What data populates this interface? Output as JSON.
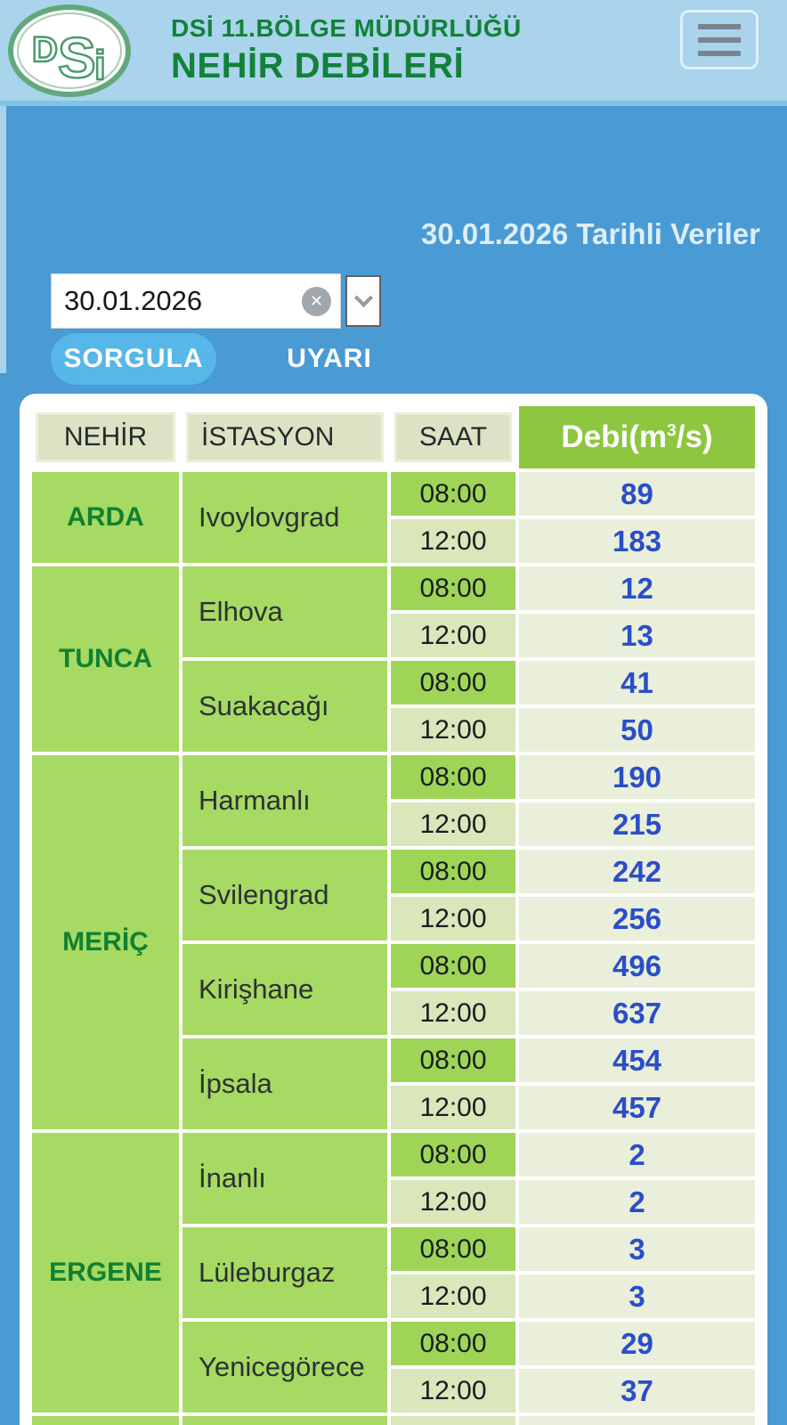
{
  "header": {
    "logo_letters": [
      "D",
      "S",
      "i"
    ],
    "title_line1": "DSİ 11.BÖLGE MÜDÜRLÜĞÜ",
    "title_line2": "NEHİR DEBİLERİ"
  },
  "toolbar": {
    "date_caption": "30.01.2026 Tarihli Veriler",
    "date_value": "30.01.2026",
    "clear_glyph": "✕",
    "sorgula_label": "SORGULA",
    "uyari_label": "UYARI"
  },
  "table": {
    "columns": [
      "NEHİR",
      "İSTASYON",
      "SAAT"
    ],
    "debi_header": {
      "base": "Debi(m",
      "sup": "3",
      "rest": "/s)"
    },
    "rivers": [
      {
        "name": "ARDA",
        "stations": [
          {
            "name": "Ivoylovgrad",
            "readings": [
              {
                "time": "08:00",
                "value": "89"
              },
              {
                "time": "12:00",
                "value": "183"
              }
            ]
          }
        ]
      },
      {
        "name": "TUNCA",
        "stations": [
          {
            "name": "Elhova",
            "readings": [
              {
                "time": "08:00",
                "value": "12"
              },
              {
                "time": "12:00",
                "value": "13"
              }
            ]
          },
          {
            "name": "Suakacağı",
            "readings": [
              {
                "time": "08:00",
                "value": "41"
              },
              {
                "time": "12:00",
                "value": "50"
              }
            ]
          }
        ]
      },
      {
        "name": "MERİÇ",
        "stations": [
          {
            "name": "Harmanlı",
            "readings": [
              {
                "time": "08:00",
                "value": "190"
              },
              {
                "time": "12:00",
                "value": "215"
              }
            ]
          },
          {
            "name": "Svilengrad",
            "readings": [
              {
                "time": "08:00",
                "value": "242"
              },
              {
                "time": "12:00",
                "value": "256"
              }
            ]
          },
          {
            "name": "Kirişhane",
            "readings": [
              {
                "time": "08:00",
                "value": "496"
              },
              {
                "time": "12:00",
                "value": "637"
              }
            ]
          },
          {
            "name": "İpsala",
            "readings": [
              {
                "time": "08:00",
                "value": "454"
              },
              {
                "time": "12:00",
                "value": "457"
              }
            ]
          }
        ]
      },
      {
        "name": "ERGENE",
        "stations": [
          {
            "name": "İnanlı",
            "readings": [
              {
                "time": "08:00",
                "value": "2"
              },
              {
                "time": "12:00",
                "value": "2"
              }
            ]
          },
          {
            "name": "Lüleburgaz",
            "readings": [
              {
                "time": "08:00",
                "value": "3"
              },
              {
                "time": "12:00",
                "value": "3"
              }
            ]
          },
          {
            "name": "Yenicegörece",
            "readings": [
              {
                "time": "08:00",
                "value": "29"
              },
              {
                "time": "12:00",
                "value": "37"
              }
            ]
          }
        ]
      }
    ],
    "truncated_next_row": true
  },
  "colors": {
    "header_bg": "#aad3ec",
    "body_bg": "#4a9ad4",
    "brand_green": "#12813a",
    "debi_header_green": "#8dc63f",
    "cell_green": "#a6da62",
    "time_08_green": "#9ed557",
    "time_12_pale": "#d9e7bb",
    "value_bg": "#e9efda",
    "value_blue": "#2a4ec9",
    "sorgula_bg": "#56b7e8"
  }
}
